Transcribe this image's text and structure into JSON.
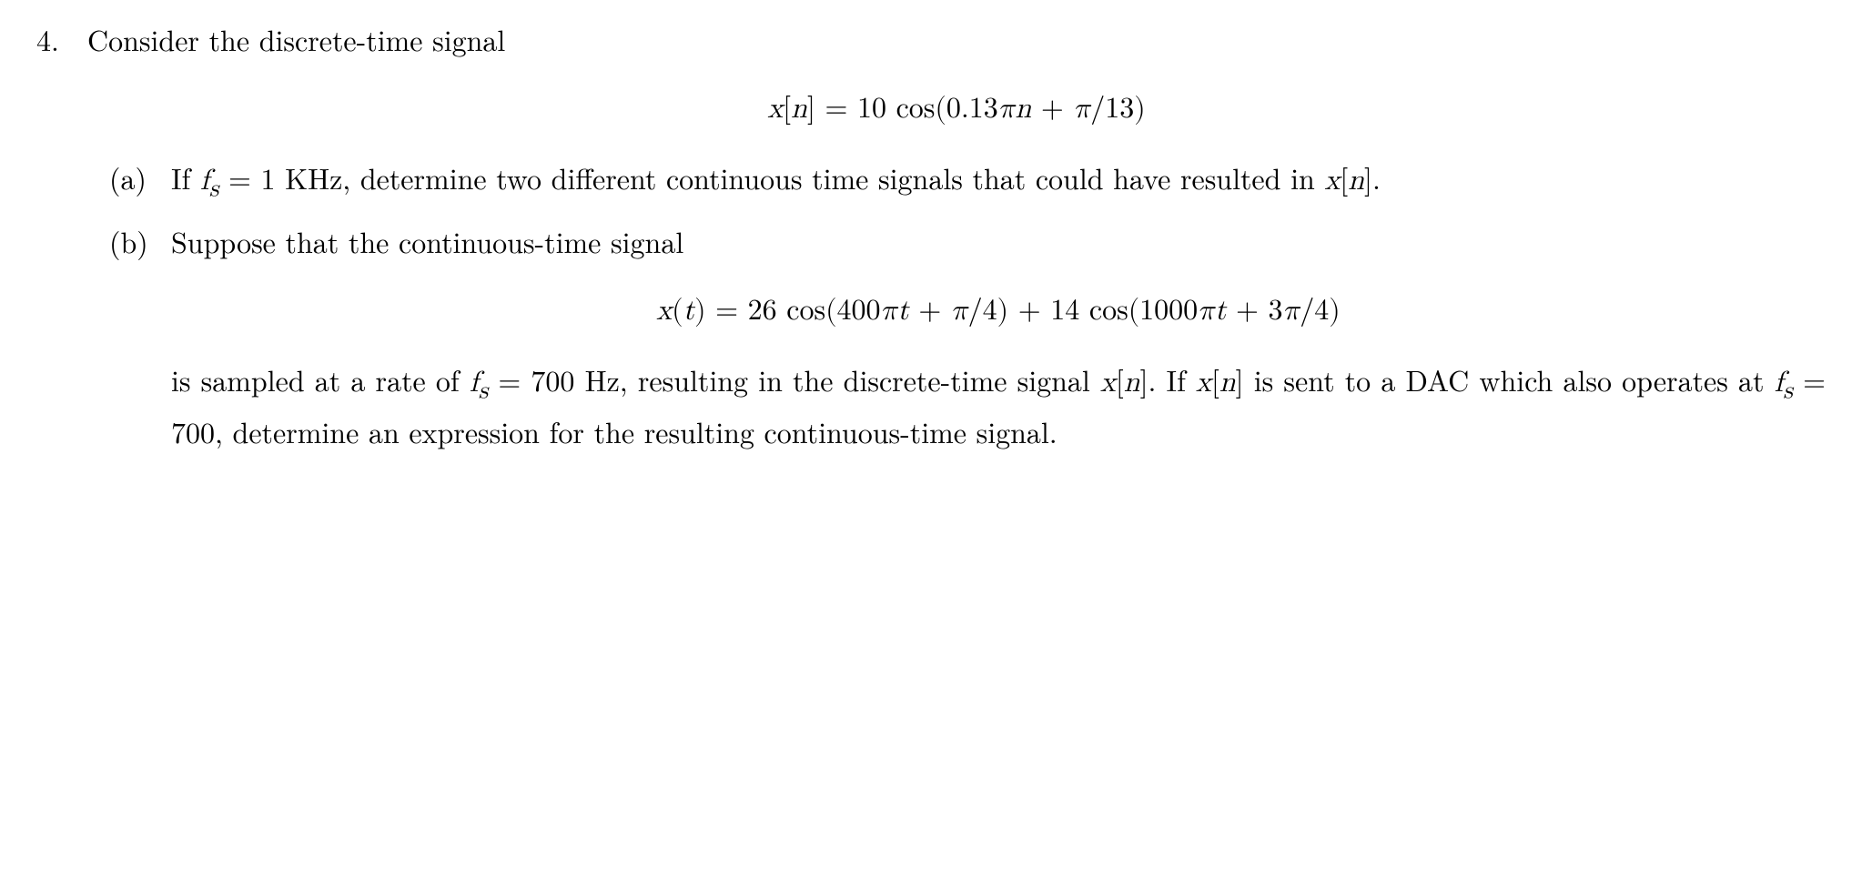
{
  "problem": {
    "number": "4.",
    "intro": "Consider the discrete-time signal",
    "equation_top": "x[n] = 10 cos(0.13πn + π/13)",
    "parts": [
      {
        "label": "(a)",
        "body_html": "If <span class='math'>f<sub>s</sub></span> = 1 KHz, determine two different continuous time signals that could have resulted in <span class='math'>x</span>[<span class='math'>n</span>]."
      },
      {
        "label": "(b)",
        "intro": "Suppose that the continuous-time signal",
        "equation": "x(t) = 26 cos(400πt + π/4) + 14 cos(1000πt + 3π/4)",
        "body_html": "is sampled at a rate of <span class='math'>f<sub>s</sub></span> = 700 Hz, resulting in the discrete-time signal <span class='math'>x</span>[<span class='math'>n</span>]. If <span class='math'>x</span>[<span class='math'>n</span>] is sent to a DAC which also operates at <span class='math'>f<sub>s</sub></span> = 700, determine an expression for the resulting continuous-time signal."
      }
    ]
  }
}
